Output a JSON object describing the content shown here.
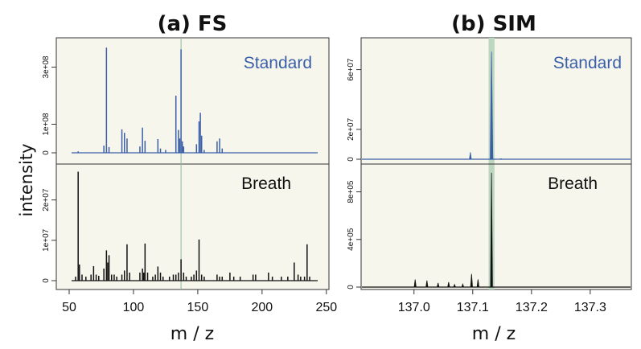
{
  "figure": {
    "ylabel": "intensity"
  },
  "chart_data": [
    {
      "type": "line",
      "title": "(a) FS",
      "xlabel": "m / z",
      "xlim": [
        40,
        252
      ],
      "xticks": [
        50,
        100,
        150,
        200,
        250
      ],
      "marker_x": 137,
      "series": [
        {
          "name": "Standard",
          "color": "#3a5fa8",
          "ylim": [
            0,
            380000000
          ],
          "yticks": [
            {
              "value": 0,
              "label": "0"
            },
            {
              "value": 100000000,
              "label": "1e+08"
            },
            {
              "value": 300000000,
              "label": "3e+08"
            }
          ],
          "peaks": [
            [
              57,
              5000000
            ],
            [
              77,
              25000000
            ],
            [
              79,
              368000000
            ],
            [
              81,
              20000000
            ],
            [
              91,
              82000000
            ],
            [
              93,
              70000000
            ],
            [
              95,
              50000000
            ],
            [
              105,
              22000000
            ],
            [
              107,
              88000000
            ],
            [
              109,
              42000000
            ],
            [
              119,
              48000000
            ],
            [
              121,
              15000000
            ],
            [
              125,
              10000000
            ],
            [
              133,
              200000000
            ],
            [
              135,
              80000000
            ],
            [
              136,
              50000000
            ],
            [
              137,
              362000000
            ],
            [
              138,
              40000000
            ],
            [
              139,
              22000000
            ],
            [
              149,
              30000000
            ],
            [
              151,
              110000000
            ],
            [
              152,
              140000000
            ],
            [
              153,
              60000000
            ],
            [
              155,
              10000000
            ],
            [
              165,
              40000000
            ],
            [
              167,
              50000000
            ],
            [
              169,
              15000000
            ]
          ]
        },
        {
          "name": "Breath",
          "color": "#111111",
          "ylim": [
            0,
            28500000
          ],
          "yticks": [
            {
              "value": 0,
              "label": "0"
            },
            {
              "value": 10000000,
              "label": "1e+07"
            },
            {
              "value": 20000000,
              "label": "2e+07"
            }
          ],
          "peaks": [
            [
              55,
              1000000
            ],
            [
              57,
              27000000
            ],
            [
              58,
              4000000
            ],
            [
              60,
              1500000
            ],
            [
              63,
              1000000
            ],
            [
              67,
              1500000
            ],
            [
              69,
              3600000
            ],
            [
              71,
              1500000
            ],
            [
              73,
              1200000
            ],
            [
              77,
              3000000
            ],
            [
              79,
              7500000
            ],
            [
              80,
              4500000
            ],
            [
              81,
              6300000
            ],
            [
              83,
              1500000
            ],
            [
              85,
              1500000
            ],
            [
              87,
              1000000
            ],
            [
              91,
              1500000
            ],
            [
              93,
              2500000
            ],
            [
              95,
              9000000
            ],
            [
              97,
              2000000
            ],
            [
              105,
              2000000
            ],
            [
              107,
              3000000
            ],
            [
              108,
              2000000
            ],
            [
              109,
              9200000
            ],
            [
              111,
              2000000
            ],
            [
              115,
              1000000
            ],
            [
              117,
              1500000
            ],
            [
              119,
              3500000
            ],
            [
              121,
              2000000
            ],
            [
              123,
              1000000
            ],
            [
              128,
              1000000
            ],
            [
              131,
              1500000
            ],
            [
              133,
              1500000
            ],
            [
              135,
              2000000
            ],
            [
              137,
              5300000
            ],
            [
              139,
              2000000
            ],
            [
              141,
              1000000
            ],
            [
              145,
              1000000
            ],
            [
              147,
              1500000
            ],
            [
              149,
              2500000
            ],
            [
              151,
              10200000
            ],
            [
              153,
              1500000
            ],
            [
              155,
              1000000
            ],
            [
              165,
              1500000
            ],
            [
              167,
              1000000
            ],
            [
              169,
              1000000
            ],
            [
              175,
              2000000
            ],
            [
              178,
              1000000
            ],
            [
              183,
              1000000
            ],
            [
              193,
              1500000
            ],
            [
              195,
              1500000
            ],
            [
              205,
              2000000
            ],
            [
              208,
              1000000
            ],
            [
              215,
              1000000
            ],
            [
              220,
              1000000
            ],
            [
              225,
              4500000
            ],
            [
              228,
              1500000
            ],
            [
              230,
              1000000
            ],
            [
              233,
              1000000
            ],
            [
              235,
              9000000
            ],
            [
              237,
              1000000
            ]
          ]
        }
      ]
    },
    {
      "type": "line",
      "title": "(b) SIM",
      "xlabel": "m / z",
      "xlim": [
        136.91,
        137.37
      ],
      "xticks": [
        {
          "value": 137.0,
          "label": "137.0"
        },
        {
          "value": 137.1,
          "label": "137.1"
        },
        {
          "value": 137.2,
          "label": "137.2"
        },
        {
          "value": 137.3,
          "label": "137.3"
        }
      ],
      "highlight_x": [
        137.127,
        137.137
      ],
      "series": [
        {
          "name": "Standard",
          "color": "#3a5fa8",
          "ylim": [
            0,
            77000000
          ],
          "yticks": [
            {
              "value": 0,
              "label": "0"
            },
            {
              "value": 20000000,
              "label": "2e+07"
            },
            {
              "value": 60000000,
              "label": "6e+07"
            }
          ],
          "peaks": [
            [
              137.096,
              4700000,
              0.0012
            ],
            [
              137.132,
              72000000,
              0.0022
            ],
            [
              137.148,
              400000,
              0.001
            ]
          ]
        },
        {
          "name": "Breath",
          "color": "#111111",
          "ylim": [
            0,
            1020000
          ],
          "yticks": [
            {
              "value": 0,
              "label": "0"
            },
            {
              "value": 400000,
              "label": "4e+05"
            },
            {
              "value": 800000,
              "label": "8e+05"
            }
          ],
          "peaks": [
            [
              137.002,
              64000,
              0.0012
            ],
            [
              137.022,
              55000,
              0.0012
            ],
            [
              137.041,
              35000,
              0.0012
            ],
            [
              137.059,
              42000,
              0.0012
            ],
            [
              137.069,
              22000,
              0.0012
            ],
            [
              137.083,
              25000,
              0.001
            ],
            [
              137.098,
              110000,
              0.0012
            ],
            [
              137.109,
              65000,
              0.0012
            ],
            [
              137.132,
              960000,
              0.0015
            ]
          ]
        }
      ]
    }
  ]
}
